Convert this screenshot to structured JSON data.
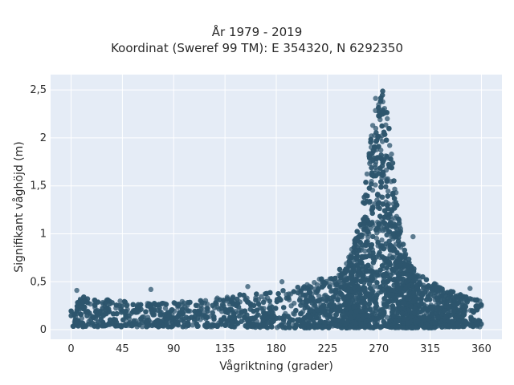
{
  "chart_data": {
    "type": "scatter",
    "title": "År 1979 - 2019",
    "subtitle": "Koordinat (Sweref 99 TM): E 354320, N 6292350",
    "xlabel": "Vågriktning (grader)",
    "ylabel": "Signifikant våghöjd (m)",
    "xlim": [
      -18,
      378
    ],
    "ylim": [
      -0.1,
      2.66
    ],
    "x_ticks": [
      0,
      45,
      90,
      135,
      180,
      225,
      270,
      315,
      360
    ],
    "x_tick_labels": [
      "0",
      "45",
      "90",
      "135",
      "180",
      "225",
      "270",
      "315",
      "360"
    ],
    "y_ticks": [
      0,
      0.5,
      1,
      1.5,
      2,
      2.5
    ],
    "y_tick_labels": [
      "0",
      "0,5",
      "1",
      "1,5",
      "2",
      "2,5"
    ],
    "grid": true,
    "marker_color": "#2e566e",
    "background_color": "#e5ecf6",
    "envelope": {
      "direction": [
        0,
        10,
        20,
        45,
        90,
        135,
        180,
        200,
        220,
        235,
        245,
        255,
        262,
        266,
        270,
        274,
        278,
        282,
        286,
        292,
        300,
        315,
        330,
        345,
        360
      ],
      "max_height": [
        0.3,
        0.35,
        0.32,
        0.3,
        0.3,
        0.35,
        0.4,
        0.45,
        0.55,
        0.65,
        0.8,
        1.2,
        1.9,
        2.45,
        2.58,
        2.55,
        2.3,
        1.85,
        1.3,
        0.85,
        0.65,
        0.5,
        0.42,
        0.35,
        0.3
      ],
      "min_height": [
        0.03,
        0.03,
        0.03,
        0.03,
        0.03,
        0.03,
        0.02,
        0.02,
        0.02,
        0.02,
        0.02,
        0.02,
        0.02,
        0.02,
        0.02,
        0.02,
        0.02,
        0.02,
        0.02,
        0.02,
        0.02,
        0.02,
        0.03,
        0.03,
        0.03
      ]
    },
    "outliers": [
      {
        "x": 5,
        "y": 0.41
      },
      {
        "x": 70,
        "y": 0.42
      },
      {
        "x": 155,
        "y": 0.45
      },
      {
        "x": 185,
        "y": 0.5
      },
      {
        "x": 300,
        "y": 0.97
      },
      {
        "x": 350,
        "y": 0.43
      }
    ]
  }
}
